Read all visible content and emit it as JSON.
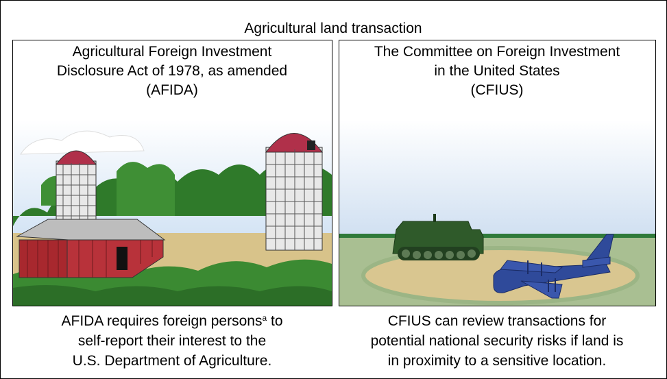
{
  "title": "Agricultural land transaction",
  "panels": [
    {
      "title": [
        "Agricultural Foreign Investment",
        "Disclosure Act of 1978, as amended",
        "(AFIDA)"
      ],
      "caption": [
        [
          "AFIDA requires foreign persons",
          "a",
          " to"
        ],
        "self-report their interest to the",
        "U.S. Department of Agriculture."
      ]
    },
    {
      "title": [
        "The Committee on Foreign Investment",
        "in the United States",
        "(CFIUS)"
      ],
      "caption": [
        "CFIUS can review transactions for",
        "potential national security risks if land is",
        "in proximity to a sensitive location."
      ]
    }
  ]
}
